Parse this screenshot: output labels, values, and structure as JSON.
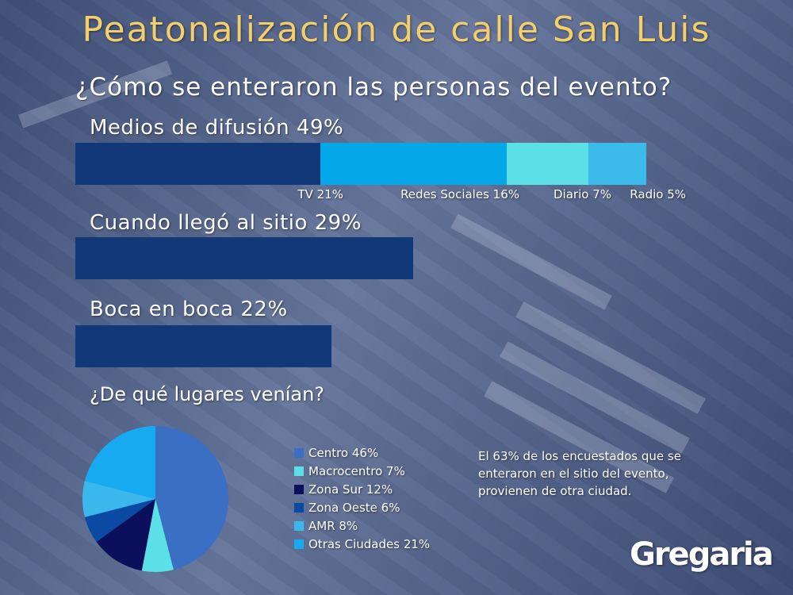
{
  "title": "Peatonalización de calle San Luis",
  "logo": {
    "text": "Gregaria"
  },
  "note": {
    "lines": [
      "El 63% de los encuestados que se",
      "enteraron en el sitio del evento,",
      "provienen de otra ciudad."
    ]
  },
  "colors": {
    "title": "#f3cf6b",
    "bar_main": "#11397a",
    "tv": "#11397a",
    "redes": "#04a7e8",
    "diario": "#5ae0e6",
    "radio": "#3bbbe9",
    "centro": "#3a6fc4",
    "macrocentro": "#5ae0e6",
    "zona_sur": "#0b0f5c",
    "zona_oeste": "#0a4aa3",
    "amr": "#3ab8ee",
    "otras": "#17aaf0"
  },
  "chart_data": [
    {
      "type": "bar",
      "title": "¿Cómo se enteraron las personas del evento?",
      "orientation": "horizontal",
      "xlim": [
        0,
        65
      ],
      "categories": [
        "Medios de difusión 49%",
        "Cuando llegó al sitio 29%",
        "Boca en boca 22%"
      ],
      "values": [
        49,
        29,
        22
      ],
      "breakdown": {
        "category": "Medios de difusión 49%",
        "stacked": true,
        "segments": [
          {
            "label": "TV 21%",
            "value": 21,
            "color": "#11397a"
          },
          {
            "label": "Redes Sociales 16%",
            "value": 16,
            "color": "#04a7e8"
          },
          {
            "label": "Diario 7%",
            "value": 7,
            "color": "#5ae0e6"
          },
          {
            "label": "Radio 5%",
            "value": 5,
            "color": "#3bbbe9"
          }
        ]
      }
    },
    {
      "type": "pie",
      "title": "¿De qué lugares venían?",
      "legend_position": "right",
      "categories": [
        "Centro 46%",
        "Macrocentro 7%",
        "Zona Sur 12%",
        "Zona Oeste 6%",
        "AMR 8%",
        "Otras Ciudades 21%"
      ],
      "values": [
        46,
        7,
        12,
        6,
        8,
        21
      ],
      "colors": [
        "#3a6fc4",
        "#5ae0e6",
        "#0b0f5c",
        "#0a4aa3",
        "#3ab8ee",
        "#17aaf0"
      ]
    }
  ]
}
